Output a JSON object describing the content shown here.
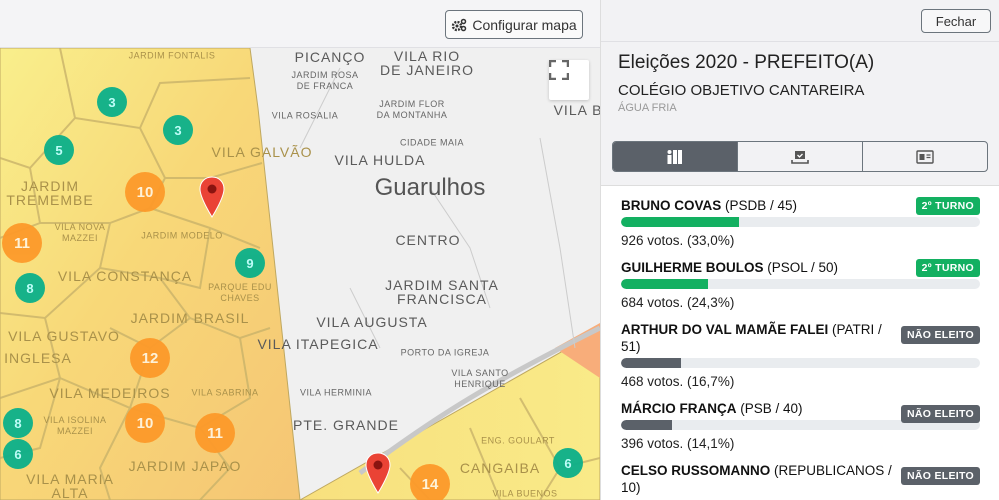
{
  "toolbar": {
    "config_label": "Configurar mapa",
    "config_icon": "gears-icon"
  },
  "map": {
    "fullscreen_icon": "fullscreen-icon",
    "labels": [
      "PICANÇO",
      "VILA RIO\nDE JANEIRO",
      "JARDIM ROSA\nDE FRANCA",
      "JARDIM FLOR\nDA MONTANHA",
      "VILA ROSALIA",
      "CIDADE MAIA",
      "VILA GALVÃO",
      "VILA HULDA",
      "Guarulhos",
      "CENTRO",
      "JARDIM SANTA\nFRANCISCA",
      "VILA AUGUSTA",
      "VILA ITAPEGICA",
      "PORTO DA IGREJA",
      "VILA SANTO\nHENRIQUE",
      "VILA HERMINIA",
      "PTE. GRANDE",
      "VILA B",
      "JARDIM FONTALIS",
      "JARDIM\nTREMEMBE",
      "VILA NOVA\nMAZZEI",
      "JARDIM MODELO",
      "VILA CONSTANÇA",
      "PARQUE EDU\nCHAVES",
      "JARDIM BRASIL",
      "VILA GUSTAVO",
      "INGLESA",
      "VILA MEDEIROS",
      "VILA SABRINA",
      "VILA ISOLINA\nMAZZEI",
      "JARDIM JAPAO",
      "VILA MARIA\nALTA",
      "ENG. GOULART",
      "CANGAIBA",
      "VILA BUENOS"
    ],
    "clusters": [
      3,
      3,
      5,
      10,
      11,
      8,
      9,
      12,
      8,
      11,
      10,
      6,
      14,
      6
    ],
    "colors": {
      "low": "#f9ef8c",
      "mid": "#f8d878",
      "high": "#f5c06a",
      "peak": "#f8ad7a",
      "cluster_small": "#0bb08a",
      "cluster_large": "#fd9a2a",
      "pin": "#ea4335"
    }
  },
  "panel": {
    "close_label": "Fechar",
    "title": "Eleições 2020 - PREFEITO(A)",
    "location": "COLÉGIO OBJETIVO CANTAREIRA",
    "district": "ÁGUA FRIA",
    "tabs": [
      {
        "icon": "voter-booth-icon",
        "active": true
      },
      {
        "icon": "ballot-box-icon",
        "active": false
      },
      {
        "icon": "id-card-icon",
        "active": false
      }
    ],
    "candidates": [
      {
        "name": "BRUNO COVAS",
        "party": "(PSDB / 45)",
        "votes": "926 votos. (33,0%)",
        "percent": 33.0,
        "badge": "2º TURNO",
        "status": "second-round"
      },
      {
        "name": "GUILHERME BOULOS",
        "party": "(PSOL / 50)",
        "votes": "684 votos. (24,3%)",
        "percent": 24.3,
        "badge": "2º TURNO",
        "status": "second-round"
      },
      {
        "name": "ARTHUR DO VAL MAMÃE FALEI",
        "party": "(PATRI / 51)",
        "votes": "468 votos. (16,7%)",
        "percent": 16.7,
        "badge": "NÃO ELEITO",
        "status": "not-elected"
      },
      {
        "name": "MÁRCIO FRANÇA",
        "party": "(PSB / 40)",
        "votes": "396 votos. (14,1%)",
        "percent": 14.1,
        "badge": "NÃO ELEITO",
        "status": "not-elected"
      },
      {
        "name": "CELSO RUSSOMANNO",
        "party": "(REPUBLICANOS / 10)",
        "votes": "",
        "percent": null,
        "badge": "NÃO ELEITO",
        "status": "not-elected"
      }
    ],
    "colors": {
      "second_round": "#13b061",
      "not_elected": "#5b6169"
    }
  }
}
